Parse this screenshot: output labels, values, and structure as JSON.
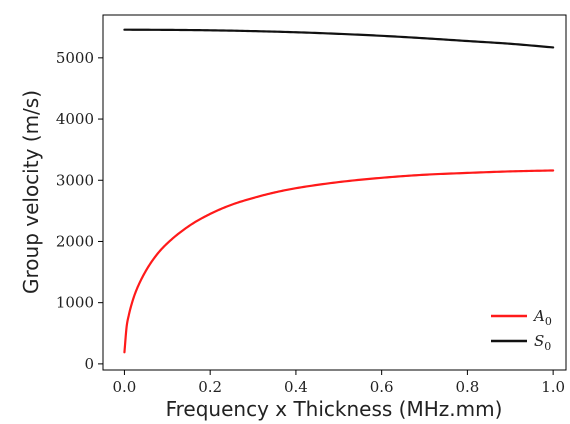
{
  "chart_data": {
    "type": "line",
    "title": "",
    "xlabel": "Frequency x Thickness (MHz.mm)",
    "ylabel": "Group velocity (m/s)",
    "xlim": [
      -0.05,
      1.03
    ],
    "ylim": [
      -100,
      5700
    ],
    "xticks": [
      0.0,
      0.2,
      0.4,
      0.6,
      0.8,
      1.0
    ],
    "xtick_labels": [
      "0.0",
      "0.2",
      "0.4",
      "0.6",
      "0.8",
      "1.0"
    ],
    "yticks": [
      0,
      1000,
      2000,
      3000,
      4000,
      5000
    ],
    "ytick_labels": [
      "0",
      "1000",
      "2000",
      "3000",
      "4000",
      "5000"
    ],
    "grid": false,
    "legend_position": "bottom-right",
    "series": [
      {
        "name": "A",
        "subscript": "0",
        "color": "#ff1a1a",
        "x": [
          0.0,
          0.005,
          0.01,
          0.02,
          0.03,
          0.05,
          0.075,
          0.1,
          0.15,
          0.2,
          0.25,
          0.3,
          0.35,
          0.4,
          0.5,
          0.6,
          0.7,
          0.8,
          0.9,
          1.0
        ],
        "y": [
          190,
          600,
          790,
          1050,
          1240,
          1520,
          1780,
          1970,
          2250,
          2450,
          2600,
          2710,
          2800,
          2870,
          2970,
          3040,
          3090,
          3120,
          3145,
          3160
        ]
      },
      {
        "name": "S",
        "subscript": "0",
        "color": "#111111",
        "x": [
          0.0,
          0.1,
          0.2,
          0.3,
          0.4,
          0.5,
          0.6,
          0.7,
          0.8,
          0.9,
          1.0
        ],
        "y": [
          5460,
          5457,
          5450,
          5437,
          5418,
          5392,
          5360,
          5320,
          5275,
          5230,
          5170
        ]
      }
    ]
  }
}
